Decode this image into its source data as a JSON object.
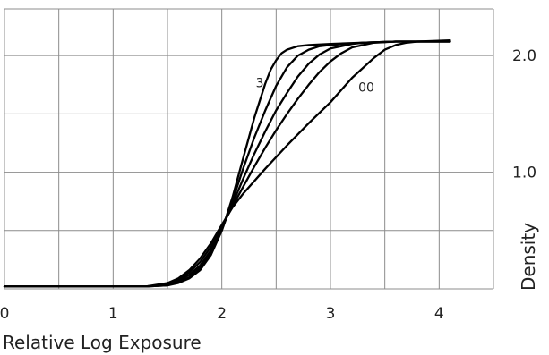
{
  "chart_data": {
    "type": "line",
    "title": "",
    "xlabel": "Relative Log Exposure",
    "ylabel": "Density",
    "xlim": [
      0,
      4.5
    ],
    "ylim": [
      0,
      2.4
    ],
    "grid": true,
    "y_axis_side": "right",
    "x_ticks": [
      "0",
      "1",
      "2",
      "3",
      "4"
    ],
    "y_ticks": [
      "1.0",
      "2.0"
    ],
    "series": [
      {
        "name": "3",
        "color": "#000000",
        "x": [
          0,
          1.3,
          1.5,
          1.6,
          1.7,
          1.8,
          1.9,
          2.0,
          2.1,
          2.2,
          2.3,
          2.4,
          2.45,
          2.5,
          2.55,
          2.6,
          2.7,
          2.8,
          3.0,
          3.3,
          3.6,
          4.1
        ],
        "y": [
          0.02,
          0.02,
          0.03,
          0.05,
          0.09,
          0.16,
          0.29,
          0.5,
          0.79,
          1.13,
          1.47,
          1.76,
          1.88,
          1.96,
          2.02,
          2.05,
          2.08,
          2.09,
          2.1,
          2.11,
          2.12,
          2.12
        ]
      },
      {
        "name": "",
        "color": "#000000",
        "x": [
          0,
          1.3,
          1.5,
          1.6,
          1.7,
          1.8,
          1.9,
          2.0,
          2.1,
          2.2,
          2.3,
          2.4,
          2.5,
          2.6,
          2.7,
          2.8,
          2.9,
          3.0,
          3.3,
          3.6,
          4.1
        ],
        "y": [
          0.02,
          0.02,
          0.03,
          0.06,
          0.1,
          0.18,
          0.31,
          0.5,
          0.76,
          1.04,
          1.3,
          1.53,
          1.74,
          1.9,
          2.0,
          2.05,
          2.08,
          2.09,
          2.11,
          2.12,
          2.12
        ]
      },
      {
        "name": "",
        "color": "#000000",
        "x": [
          0,
          1.3,
          1.5,
          1.6,
          1.7,
          1.8,
          1.9,
          2.0,
          2.1,
          2.2,
          2.3,
          2.4,
          2.5,
          2.6,
          2.7,
          2.8,
          2.9,
          3.0,
          3.1,
          3.2,
          3.3,
          3.6,
          4.1
        ],
        "y": [
          0.02,
          0.02,
          0.04,
          0.07,
          0.12,
          0.2,
          0.33,
          0.52,
          0.73,
          0.95,
          1.16,
          1.35,
          1.53,
          1.68,
          1.82,
          1.93,
          2.01,
          2.06,
          2.08,
          2.1,
          2.11,
          2.12,
          2.12
        ]
      },
      {
        "name": "",
        "color": "#000000",
        "x": [
          0,
          1.3,
          1.5,
          1.6,
          1.7,
          1.8,
          1.9,
          2.0,
          2.1,
          2.2,
          2.3,
          2.4,
          2.5,
          2.6,
          2.7,
          2.8,
          2.9,
          3.0,
          3.1,
          3.2,
          3.3,
          3.4,
          3.6,
          4.1
        ],
        "y": [
          0.02,
          0.02,
          0.04,
          0.08,
          0.14,
          0.23,
          0.36,
          0.53,
          0.71,
          0.88,
          1.05,
          1.21,
          1.36,
          1.5,
          1.63,
          1.75,
          1.86,
          1.95,
          2.02,
          2.07,
          2.09,
          2.11,
          2.12,
          2.12
        ]
      },
      {
        "name": "00",
        "color": "#000000",
        "x": [
          0,
          1.3,
          1.5,
          1.6,
          1.7,
          1.8,
          1.9,
          2.0,
          2.1,
          2.2,
          2.4,
          2.6,
          2.8,
          3.0,
          3.2,
          3.4,
          3.5,
          3.6,
          3.7,
          3.8,
          4.1
        ],
        "y": [
          0.02,
          0.02,
          0.05,
          0.09,
          0.16,
          0.26,
          0.39,
          0.55,
          0.7,
          0.82,
          1.03,
          1.23,
          1.42,
          1.6,
          1.81,
          1.98,
          2.05,
          2.09,
          2.11,
          2.12,
          2.13
        ]
      }
    ]
  }
}
